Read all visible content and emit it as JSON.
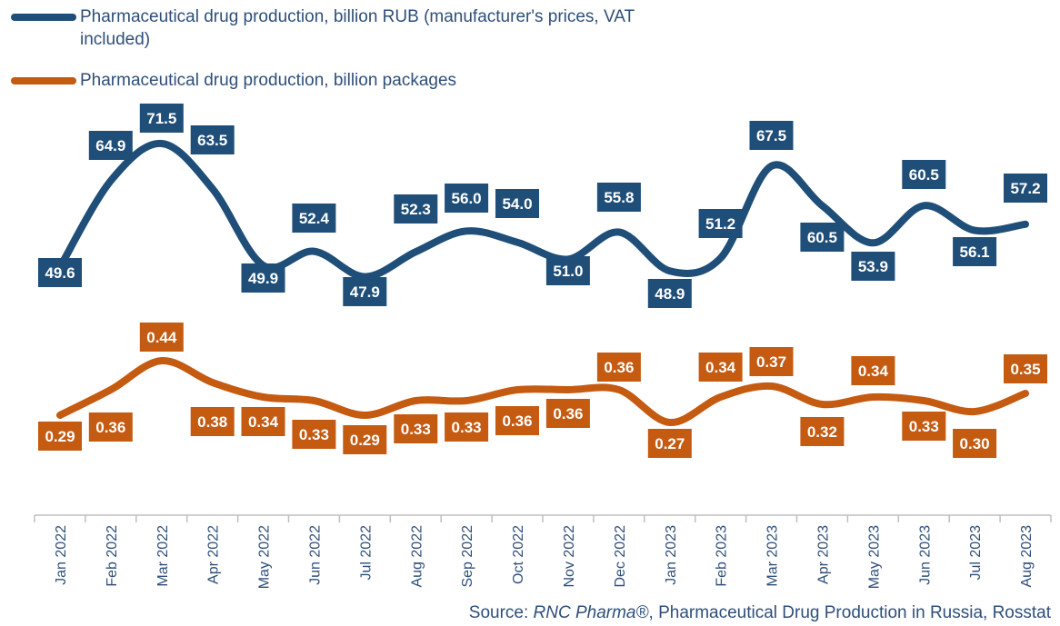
{
  "chart_data": {
    "type": "line",
    "categories": [
      "Jan 2022",
      "Feb 2022",
      "Mar 2022",
      "Apr 2022",
      "May 2022",
      "Jun 2022",
      "Jul 2022",
      "Aug 2022",
      "Sep 2022",
      "Oct 2022",
      "Nov 2022",
      "Dec 2022",
      "Jan 2023",
      "Feb 2023",
      "Mar 2023",
      "Apr 2023",
      "May 2023",
      "Jun 2023",
      "Jul 2023",
      "Aug 2023"
    ],
    "series": [
      {
        "name": "Pharmaceutical drug production, billion RUB (manufacturer's prices, VAT included)",
        "color": "#1f4e79",
        "values": [
          49.6,
          64.9,
          71.5,
          63.5,
          49.9,
          52.4,
          47.9,
          52.3,
          56.0,
          54.0,
          51.0,
          55.8,
          48.9,
          51.2,
          67.5,
          60.5,
          53.9,
          60.5,
          56.1,
          57.2
        ],
        "labels": [
          "49.6",
          "64.9",
          "71.5",
          "63.5",
          "49.9",
          "52.4",
          "47.9",
          "52.3",
          "56.0",
          "54.0",
          "51.0",
          "55.8",
          "48.9",
          "51.2",
          "67.5",
          "60.5",
          "53.9",
          "60.5",
          "56.1",
          "57.2"
        ]
      },
      {
        "name": "Pharmaceutical drug production, billion packages",
        "color": "#c55a11",
        "values": [
          0.29,
          0.36,
          0.44,
          0.38,
          0.34,
          0.33,
          0.29,
          0.33,
          0.33,
          0.36,
          0.36,
          0.36,
          0.27,
          0.34,
          0.37,
          0.32,
          0.34,
          0.33,
          0.3,
          0.35
        ],
        "labels": [
          "0.29",
          "0.36",
          "0.44",
          "0.38",
          "0.34",
          "0.33",
          "0.29",
          "0.33",
          "0.33",
          "0.36",
          "0.36",
          "0.36",
          "0.27",
          "0.34",
          "0.37",
          "0.32",
          "0.34",
          "0.33",
          "0.30",
          "0.35"
        ]
      }
    ],
    "legend_position": "top-left",
    "grid": false
  },
  "source": {
    "prefix": "Source: ",
    "brand": "RNC Pharma®",
    "suffix": ", Pharmaceutical Drug Production in Russia, Rosstat"
  }
}
